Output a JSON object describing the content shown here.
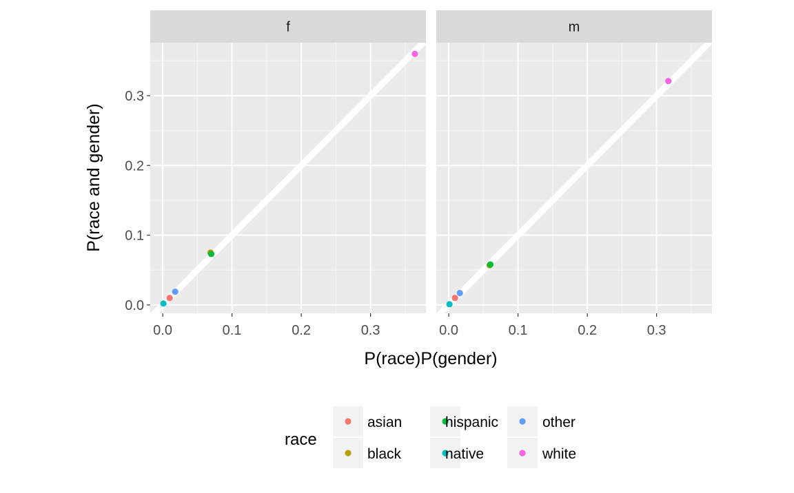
{
  "chart_data": {
    "type": "scatter",
    "xlabel": "P(race)P(gender)",
    "ylabel": "P(race and gender)",
    "x_ticks": [
      0.0,
      0.1,
      0.2,
      0.3
    ],
    "y_ticks": [
      0.0,
      0.1,
      0.2,
      0.3
    ],
    "x_tick_labels": [
      "0.0",
      "0.1",
      "0.2",
      "0.3"
    ],
    "y_tick_labels": [
      "0.0",
      "0.1",
      "0.2",
      "0.3"
    ],
    "xlim": [
      -0.018,
      0.38
    ],
    "ylim": [
      -0.012,
      0.376
    ],
    "grid": true,
    "reference_line": {
      "slope": 1,
      "intercept": 0,
      "color": "#ffffff"
    },
    "legend": {
      "title": "race",
      "position": "bottom",
      "entries": [
        {
          "label": "asian",
          "color": "#F8766D"
        },
        {
          "label": "black",
          "color": "#B79F00"
        },
        {
          "label": "hispanic",
          "color": "#00BA38"
        },
        {
          "label": "native",
          "color": "#00BFC4"
        },
        {
          "label": "other",
          "color": "#619CFF"
        },
        {
          "label": "white",
          "color": "#F564E3"
        }
      ]
    },
    "panels": [
      {
        "label": "f",
        "series": [
          {
            "name": "asian",
            "color": "#F8766D",
            "points": [
              {
                "x": 0.01,
                "y": 0.01
              }
            ]
          },
          {
            "name": "black",
            "color": "#B79F00",
            "points": [
              {
                "x": 0.069,
                "y": 0.075
              }
            ]
          },
          {
            "name": "hispanic",
            "color": "#00BA38",
            "points": [
              {
                "x": 0.07,
                "y": 0.073
              }
            ]
          },
          {
            "name": "native",
            "color": "#00BFC4",
            "points": [
              {
                "x": 0.001,
                "y": 0.002
              }
            ]
          },
          {
            "name": "other",
            "color": "#619CFF",
            "points": [
              {
                "x": 0.018,
                "y": 0.019
              }
            ]
          },
          {
            "name": "white",
            "color": "#F564E3",
            "points": [
              {
                "x": 0.364,
                "y": 0.36
              }
            ]
          }
        ]
      },
      {
        "label": "m",
        "series": [
          {
            "name": "asian",
            "color": "#F8766D",
            "points": [
              {
                "x": 0.009,
                "y": 0.01
              }
            ]
          },
          {
            "name": "black",
            "color": "#B79F00",
            "points": [
              {
                "x": 0.059,
                "y": 0.057
              }
            ]
          },
          {
            "name": "hispanic",
            "color": "#00BA38",
            "points": [
              {
                "x": 0.06,
                "y": 0.058
              }
            ]
          },
          {
            "name": "native",
            "color": "#00BFC4",
            "points": [
              {
                "x": 0.001,
                "y": 0.001
              }
            ]
          },
          {
            "name": "other",
            "color": "#619CFF",
            "points": [
              {
                "x": 0.016,
                "y": 0.017
              }
            ]
          },
          {
            "name": "white",
            "color": "#F564E3",
            "points": [
              {
                "x": 0.317,
                "y": 0.321
              }
            ]
          }
        ]
      }
    ]
  }
}
